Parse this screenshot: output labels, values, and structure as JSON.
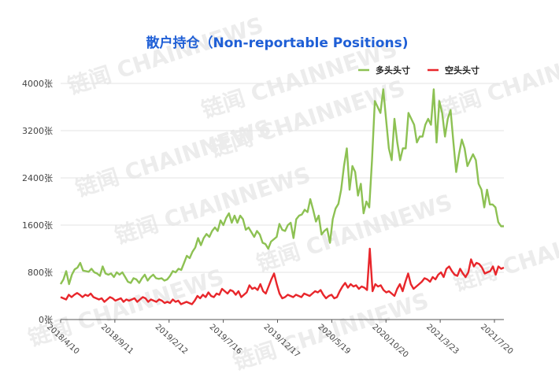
{
  "chart_data": {
    "type": "line",
    "title": "散户持仓（Non-reportable Positions)",
    "title_color": "#1f5fd6",
    "watermark": "链闻 CHAINNEWS",
    "xlabel": "",
    "ylabel": "",
    "ylim": [
      0,
      4000
    ],
    "y_ticks": [
      "0张",
      "800张",
      "1600张",
      "2400张",
      "3200张",
      "4000张"
    ],
    "y_tick_values": [
      0,
      800,
      1600,
      2400,
      3200,
      4000
    ],
    "x_tick_labels": [
      "2018/4/10",
      "2018/9/11",
      "2019/2/12",
      "2019/7/16",
      "2019/12/17",
      "2020/5/19",
      "2020/10/20",
      "2021/3/23",
      "2021/7/20"
    ],
    "grid": true,
    "legend_position": "top-right",
    "x_start": "2018/4/10",
    "x_end": "2021/7/20",
    "series": [
      {
        "name": "多头头寸",
        "color": "#8dc153",
        "values": [
          600,
          680,
          820,
          600,
          760,
          850,
          880,
          960,
          830,
          820,
          810,
          860,
          800,
          780,
          740,
          900,
          780,
          760,
          780,
          720,
          800,
          760,
          800,
          720,
          640,
          620,
          700,
          680,
          620,
          700,
          760,
          660,
          720,
          760,
          700,
          690,
          700,
          660,
          680,
          740,
          820,
          800,
          860,
          840,
          960,
          1080,
          1040,
          1150,
          1220,
          1380,
          1260,
          1380,
          1450,
          1400,
          1500,
          1560,
          1500,
          1680,
          1600,
          1720,
          1800,
          1640,
          1760,
          1640,
          1760,
          1700,
          1520,
          1560,
          1480,
          1400,
          1500,
          1440,
          1300,
          1280,
          1200,
          1320,
          1360,
          1400,
          1620,
          1520,
          1500,
          1600,
          1640,
          1380,
          1700,
          1760,
          1780,
          1860,
          1820,
          2040,
          1860,
          1660,
          1760,
          1440,
          1500,
          1540,
          1300,
          1700,
          1880,
          1960,
          2200,
          2600,
          2900,
          2200,
          2600,
          2500,
          2100,
          2300,
          1800,
          2000,
          1900,
          2700,
          3700,
          3600,
          3500,
          3900,
          3400,
          2900,
          2700,
          3400,
          3000,
          2700,
          2900,
          2900,
          3500,
          3400,
          3300,
          3000,
          3100,
          3100,
          3300,
          3400,
          3300,
          3900,
          3000,
          3700,
          3500,
          3100,
          3400,
          3550,
          3000,
          2500,
          2800,
          3050,
          2900,
          2600,
          2700,
          2800,
          2700,
          2300,
          2200,
          1900,
          2200,
          1950,
          1950,
          1900,
          1650,
          1580,
          1580
        ]
      },
      {
        "name": "空头头寸",
        "color": "#e8262b",
        "values": [
          380,
          360,
          340,
          420,
          380,
          420,
          450,
          420,
          380,
          420,
          400,
          440,
          380,
          360,
          340,
          360,
          300,
          340,
          380,
          360,
          320,
          340,
          360,
          300,
          340,
          320,
          340,
          360,
          300,
          340,
          380,
          360,
          300,
          340,
          320,
          300,
          340,
          320,
          280,
          300,
          280,
          340,
          300,
          320,
          260,
          280,
          300,
          280,
          260,
          320,
          400,
          360,
          420,
          380,
          460,
          400,
          380,
          440,
          420,
          520,
          480,
          440,
          500,
          480,
          420,
          480,
          380,
          420,
          460,
          580,
          520,
          540,
          500,
          600,
          480,
          440,
          560,
          680,
          780,
          600,
          440,
          360,
          380,
          420,
          400,
          380,
          420,
          400,
          380,
          440,
          420,
          400,
          440,
          480,
          460,
          500,
          420,
          360,
          400,
          420,
          360,
          380,
          480,
          560,
          620,
          540,
          600,
          560,
          580,
          520,
          560,
          540,
          500,
          1200,
          480,
          600,
          560,
          580,
          500,
          460,
          480,
          440,
          400,
          520,
          600,
          480,
          640,
          780,
          600,
          520,
          560,
          600,
          640,
          700,
          680,
          640,
          720,
          680,
          760,
          800,
          720,
          860,
          900,
          820,
          760,
          740,
          860,
          780,
          720,
          800,
          1020,
          900,
          960,
          940,
          880,
          780,
          800,
          820,
          900,
          760,
          900,
          860,
          880
        ]
      }
    ]
  }
}
